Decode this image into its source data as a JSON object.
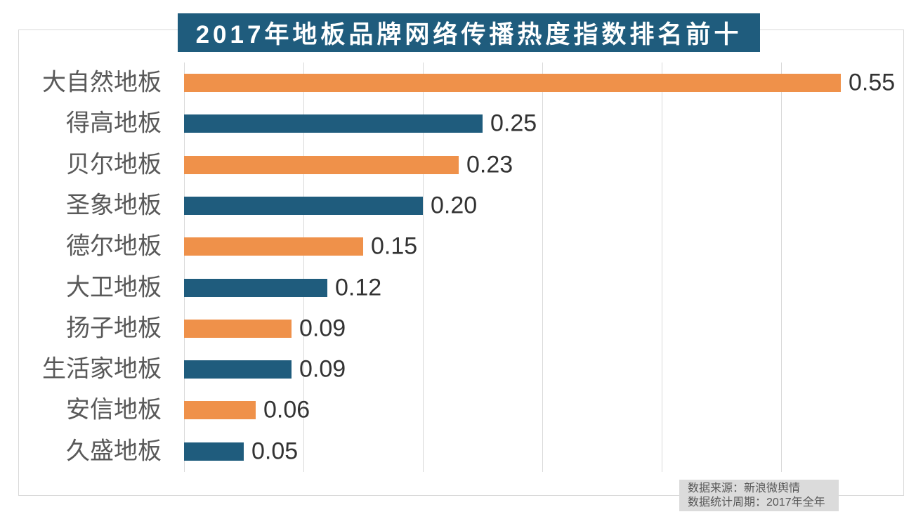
{
  "title": "2017年地板品牌网络传播热度指数排名前十",
  "source": {
    "line1": "数据来源：新浪微舆情",
    "line2": "数据统计周期：2017年全年"
  },
  "colors": {
    "title_bg": "#1f5c7d",
    "bar_orange": "#ef914a",
    "bar_teal": "#1f5c7d",
    "gridline": "#d9d9d9",
    "category_label": "#595959",
    "value_label": "#333333",
    "source_bg": "#dbdbdb"
  },
  "chart_data": {
    "type": "bar",
    "orientation": "horizontal",
    "title": "2017年地板品牌网络传播热度指数排名前十",
    "categories": [
      "大自然地板",
      "得高地板",
      "贝尔地板",
      "圣象地板",
      "德尔地板",
      "大卫地板",
      "扬子地板",
      "生活家地板",
      "安信地板",
      "久盛地板"
    ],
    "values": [
      0.55,
      0.25,
      0.23,
      0.2,
      0.15,
      0.12,
      0.09,
      0.09,
      0.06,
      0.05
    ],
    "value_labels": [
      "0.55",
      "0.25",
      "0.23",
      "0.20",
      "0.15",
      "0.12",
      "0.09",
      "0.09",
      "0.06",
      "0.05"
    ],
    "xlabel": "",
    "ylabel": "",
    "xlim": [
      0,
      0.6
    ],
    "grid_step": 0.1,
    "grid": "vertical-only",
    "tick_labels_shown": false,
    "legend": "none",
    "bar_colors_alternating": [
      "#ef914a",
      "#1f5c7d"
    ]
  }
}
